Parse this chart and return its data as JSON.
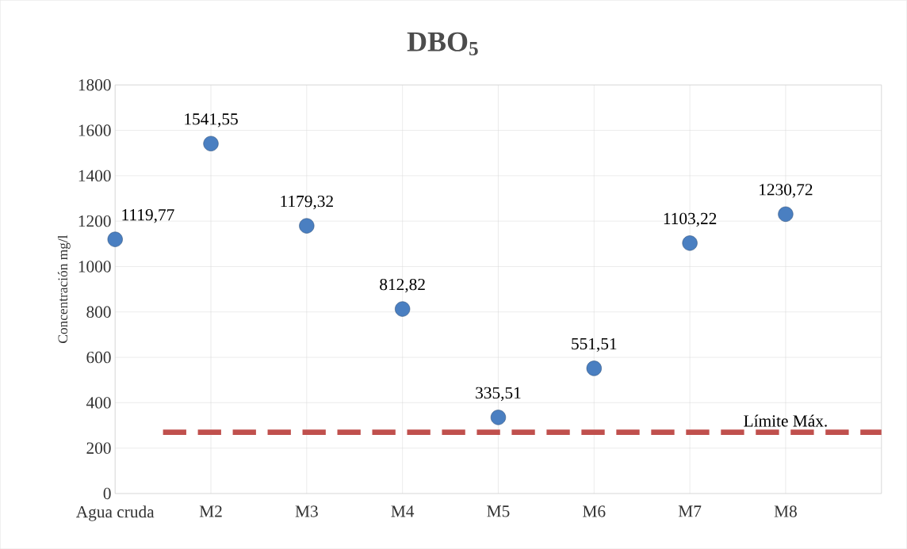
{
  "chart_data": {
    "type": "scatter",
    "title": "DBO$_{5}$",
    "ylabel": "Concentración  mg/l",
    "categories": [
      "Agua cruda",
      "M2",
      "M3",
      "M4",
      "M5",
      "M6",
      "M7",
      "M8"
    ],
    "values": [
      1119.77,
      1541.55,
      1179.32,
      812.82,
      335.51,
      551.51,
      1103.22,
      1230.72
    ],
    "value_labels": [
      "1119,77",
      "1541,55",
      "1179,32",
      "812,82",
      "335,51",
      "551,51",
      "1103,22",
      "1230,72"
    ],
    "color": "#4a7fc1",
    "marker": "circle",
    "ylim": [
      0,
      1800
    ],
    "yticks": [
      0,
      200,
      400,
      600,
      800,
      1000,
      1200,
      1400,
      1600,
      1800
    ],
    "grid": true,
    "legend": false,
    "ref_lines": [
      {
        "axis": "y",
        "value": 270,
        "label": "Límite Máx.",
        "color": "#c0504d",
        "line_style": "dashed"
      }
    ]
  }
}
